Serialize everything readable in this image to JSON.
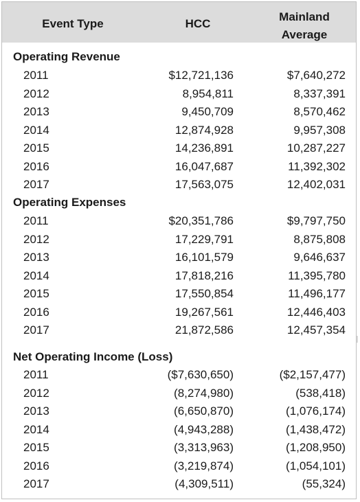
{
  "header": {
    "event_type": "Event Type",
    "hcc": "HCC",
    "mainland_line1": "Mainland",
    "mainland_line2": "Average"
  },
  "sections": [
    {
      "title": "Operating Revenue",
      "rows": [
        {
          "year": "2011",
          "hcc": "$12,721,136",
          "avg": "$7,640,272"
        },
        {
          "year": "2012",
          "hcc": "8,954,811",
          "avg": "8,337,391"
        },
        {
          "year": "2013",
          "hcc": "9,450,709",
          "avg": "8,570,462"
        },
        {
          "year": "2014",
          "hcc": "12,874,928",
          "avg": "9,957,308"
        },
        {
          "year": "2015",
          "hcc": "14,236,891",
          "avg": "10,287,227"
        },
        {
          "year": "2016",
          "hcc": "16,047,687",
          "avg": "11,392,302"
        },
        {
          "year": "2017",
          "hcc": "17,563,075",
          "avg": "12,402,031"
        }
      ]
    },
    {
      "title": "Operating Expenses",
      "rows": [
        {
          "year": "2011",
          "hcc": "$20,351,786",
          "avg": "$9,797,750"
        },
        {
          "year": "2012",
          "hcc": "17,229,791",
          "avg": "8,875,808"
        },
        {
          "year": "2013",
          "hcc": "16,101,579",
          "avg": "9,646,637"
        },
        {
          "year": "2014",
          "hcc": "17,818,216",
          "avg": "11,395,780"
        },
        {
          "year": "2015",
          "hcc": "17,550,854",
          "avg": "11,496,177"
        },
        {
          "year": "2016",
          "hcc": "19,267,561",
          "avg": "12,446,403"
        },
        {
          "year": "2017",
          "hcc": "21,872,586",
          "avg": "12,457,354"
        }
      ]
    },
    {
      "title": "Net Operating Income (Loss)",
      "rows": [
        {
          "year": "2011",
          "hcc": "($7,630,650)",
          "avg": "($2,157,477)"
        },
        {
          "year": "2012",
          "hcc": "(8,274,980)",
          "avg": "(538,418)"
        },
        {
          "year": "2013",
          "hcc": "(6,650,870)",
          "avg": "(1,076,174)"
        },
        {
          "year": "2014",
          "hcc": "(4,943,288)",
          "avg": "(1,438,472)"
        },
        {
          "year": "2015",
          "hcc": "(3,313,963)",
          "avg": "(1,208,950)"
        },
        {
          "year": "2016",
          "hcc": "(3,219,874)",
          "avg": "(1,054,101)"
        },
        {
          "year": "2017",
          "hcc": "(4,309,511)",
          "avg": "(55,324)"
        }
      ]
    }
  ]
}
